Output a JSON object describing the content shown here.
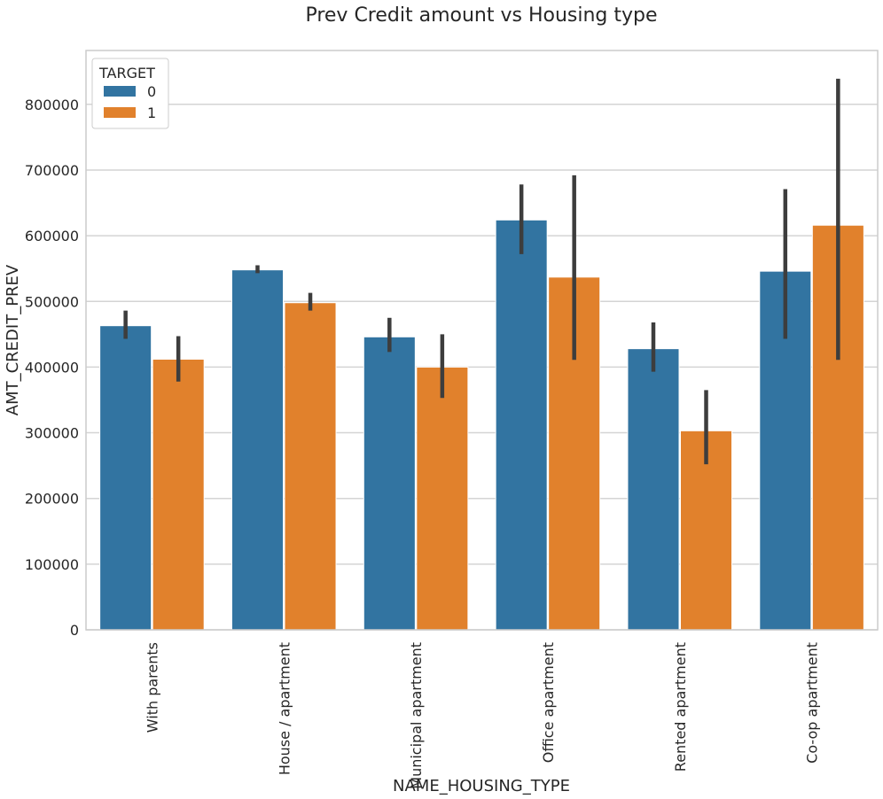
{
  "chart_data": {
    "type": "bar",
    "title": "Prev Credit amount vs Housing type",
    "xlabel": "NAME_HOUSING_TYPE",
    "ylabel": "AMT_CREDIT_PREV",
    "categories": [
      "With parents",
      "House / apartment",
      "Municipal apartment",
      "Office apartment",
      "Rented apartment",
      "Co-op apartment"
    ],
    "series": [
      {
        "name": "0",
        "color": "#3274a1",
        "values": [
          463000,
          548000,
          446000,
          624000,
          428000,
          546000
        ],
        "ci_low": [
          443000,
          543000,
          423000,
          572000,
          393000,
          443000
        ],
        "ci_high": [
          486000,
          555000,
          475000,
          678000,
          468000,
          671000
        ]
      },
      {
        "name": "1",
        "color": "#e1812c",
        "values": [
          412000,
          498000,
          400000,
          537000,
          303000,
          616000
        ],
        "ci_low": [
          378000,
          486000,
          353000,
          411000,
          252000,
          411000
        ],
        "ci_high": [
          447000,
          513000,
          450000,
          692000,
          365000,
          839000
        ]
      }
    ],
    "ylim": [
      0,
      882000
    ],
    "yticks": [
      0,
      100000,
      200000,
      300000,
      400000,
      500000,
      600000,
      700000,
      800000
    ],
    "ytick_labels": [
      "0",
      "100000",
      "200000",
      "300000",
      "400000",
      "500000",
      "600000",
      "700000",
      "800000"
    ],
    "grid": "horizontal",
    "legend": {
      "title": "TARGET",
      "placement": "top-left"
    },
    "error_bar_color": "#3d3d3d"
  }
}
